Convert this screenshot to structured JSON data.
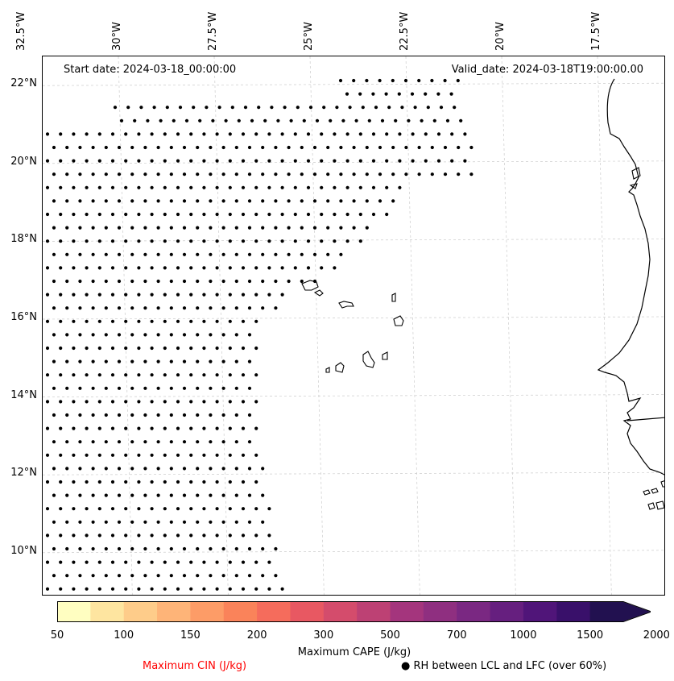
{
  "map": {
    "header_left": "Start date: 2024-03-18_00:00:00",
    "header_right": "Valid_date: 2024-03-18T19:00:00.00",
    "lon_ticks": [
      {
        "label": "32.5°W",
        "lon": -32.5
      },
      {
        "label": "30°W",
        "lon": -30
      },
      {
        "label": "27.5°W",
        "lon": -27.5
      },
      {
        "label": "25°W",
        "lon": -25
      },
      {
        "label": "22.5°W",
        "lon": -22.5
      },
      {
        "label": "20°W",
        "lon": -20
      },
      {
        "label": "17.5°W",
        "lon": -17.5
      }
    ],
    "lat_ticks": [
      {
        "label": "22°N",
        "lat": 22
      },
      {
        "label": "20°N",
        "lat": 20
      },
      {
        "label": "18°N",
        "lat": 18
      },
      {
        "label": "16°N",
        "lat": 16
      },
      {
        "label": "14°N",
        "lat": 14
      },
      {
        "label": "12°N",
        "lat": 12
      },
      {
        "label": "10°N",
        "lat": 10
      }
    ],
    "gridlines": true,
    "coastline_color": "#000000",
    "stipple_marker": "black-dot"
  },
  "colorbar": {
    "levels": [
      "50",
      "100",
      "150",
      "200",
      "300",
      "500",
      "700",
      "1000",
      "1500",
      "2000"
    ],
    "colors": [
      "#fffec1",
      "#fee5a0",
      "#fecc8a",
      "#feb478",
      "#fd9c67",
      "#fa835a",
      "#f56c5c",
      "#e85862",
      "#d44c6c",
      "#bd4174",
      "#a4357d",
      "#8f2f80",
      "#7a2882",
      "#661f7f",
      "#501579",
      "#39106a",
      "#221150"
    ],
    "extend": "max",
    "label": "Maximum CAPE (J/kg)"
  },
  "legend": {
    "cin_label": "Maximum CIN (J/kg)",
    "cin_color": "#ff0000",
    "rh_label": "● RH between LCL and LFC (over 60%)"
  }
}
